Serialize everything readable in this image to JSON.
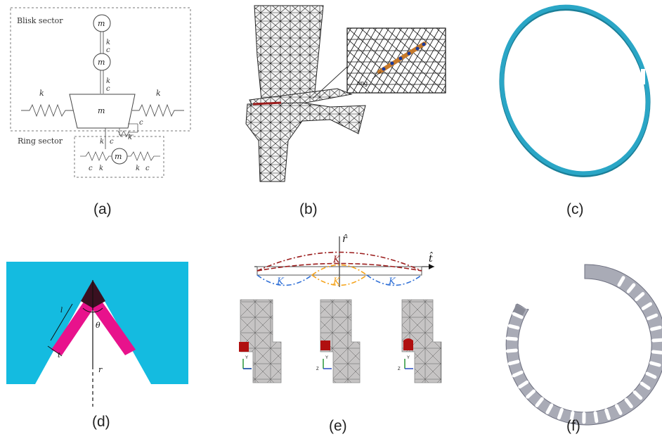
{
  "captions": [
    "(a)",
    "(b)",
    "(c)",
    "(d)",
    "(e)",
    "(f)"
  ],
  "panel_a": {
    "blisk_label": "Blisk sector",
    "ring_label": "Ring sector",
    "m_b2": "m",
    "m_b1": "m",
    "m0": "m",
    "mr": "m",
    "k0_left": "k",
    "k0_right": "k",
    "kb2": "k",
    "cb2": "c",
    "kb1": "k",
    "cb1": "c",
    "cG": "c",
    "kG": "k",
    "kt": "k",
    "ct": "c",
    "cr_left": "c",
    "kr_left": "k",
    "kr_right": "k",
    "cr_right": "c"
  },
  "panel_b": {
    "inset_label": "ring"
  },
  "panel_d": {
    "theta": "θ",
    "r": "r",
    "l": "l",
    "t": "t"
  },
  "panel_e": {
    "r_axis": "r̂",
    "t_axis": "t̂",
    "k1": "K",
    "k2_left": "K",
    "k3": "K",
    "k2_right": "K",
    "triad_y": "Y",
    "triad_z": "Z"
  },
  "colors": {
    "cyan": "#14bbe0",
    "magenta": "#e8128c",
    "dark_tip": "#3a1020",
    "mode_red": "#9b1d1d",
    "mode_orange": "#f5a31a",
    "mode_blue": "#2f6fd6",
    "ring_teal": "#2aa6c6",
    "ring_grey": "#a9abb6",
    "mesh_grey": "#c8c6c6"
  }
}
